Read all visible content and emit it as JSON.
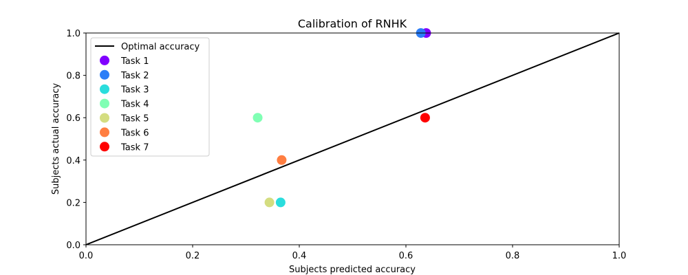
{
  "chart_data": {
    "type": "scatter",
    "title": "Calibration of RNHK",
    "xlabel": "Subjects predicted accuracy",
    "ylabel": "Subjects actual accuracy",
    "xlim": [
      0.0,
      1.0
    ],
    "ylim": [
      0.0,
      1.0
    ],
    "xticks": [
      "0.0",
      "0.2",
      "0.4",
      "0.6",
      "0.8",
      "1.0"
    ],
    "yticks": [
      "0.0",
      "0.2",
      "0.4",
      "0.6",
      "0.8",
      "1.0"
    ],
    "grid": false,
    "legend_position": "top-left",
    "reference_line": {
      "name": "Optimal accuracy",
      "x": [
        0.0,
        1.0
      ],
      "y": [
        0.0,
        1.0
      ],
      "color": "#000000"
    },
    "series": [
      {
        "name": "Task 1",
        "color": "#8000ff",
        "x": [
          0.638
        ],
        "y": [
          1.0
        ]
      },
      {
        "name": "Task 2",
        "color": "#2c7ef7",
        "x": [
          0.628
        ],
        "y": [
          1.0
        ]
      },
      {
        "name": "Task 3",
        "color": "#2adddd",
        "x": [
          0.365
        ],
        "y": [
          0.2
        ]
      },
      {
        "name": "Task 4",
        "color": "#80ffb4",
        "x": [
          0.322
        ],
        "y": [
          0.6
        ]
      },
      {
        "name": "Task 5",
        "color": "#d4dd80",
        "x": [
          0.344
        ],
        "y": [
          0.2
        ]
      },
      {
        "name": "Task 6",
        "color": "#ff7e41",
        "x": [
          0.367
        ],
        "y": [
          0.4
        ]
      },
      {
        "name": "Task 7",
        "color": "#ff0000",
        "x": [
          0.636
        ],
        "y": [
          0.6
        ]
      }
    ]
  }
}
